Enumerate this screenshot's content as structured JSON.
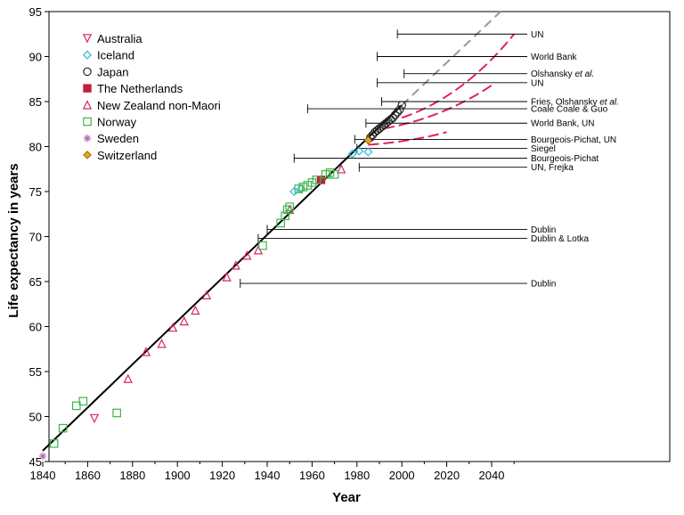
{
  "chart_data": {
    "type": "scatter",
    "xlabel": "Year",
    "ylabel": "Life expectancy in years",
    "xlim": [
      1840,
      2070
    ],
    "ylim": [
      45,
      95
    ],
    "x_ticks": [
      1840,
      1860,
      1880,
      1900,
      1920,
      1940,
      1960,
      1980,
      2000,
      2020,
      2040
    ],
    "y_ticks": [
      45,
      50,
      55,
      60,
      65,
      70,
      75,
      80,
      85,
      90,
      95
    ],
    "legend_position": "top-left",
    "series": [
      {
        "name": "Australia",
        "marker": "triangle-down",
        "color": "#d6246e",
        "points": [
          [
            1863,
            49.8
          ]
        ]
      },
      {
        "name": "Iceland",
        "marker": "diamond",
        "color": "#29b6d8",
        "points": [
          [
            1952,
            75.0
          ],
          [
            1955,
            75.3
          ],
          [
            1978,
            79.2
          ],
          [
            1981,
            79.5
          ],
          [
            1985,
            79.4
          ]
        ]
      },
      {
        "name": "Japan",
        "marker": "circle",
        "color": "#222222",
        "points": [
          [
            1986,
            81.0
          ],
          [
            1987,
            81.3
          ],
          [
            1988,
            81.6
          ],
          [
            1989,
            81.8
          ],
          [
            1990,
            82.0
          ],
          [
            1991,
            82.2
          ],
          [
            1992,
            82.4
          ],
          [
            1993,
            82.6
          ],
          [
            1994,
            82.8
          ],
          [
            1995,
            83.0
          ],
          [
            1996,
            83.2
          ],
          [
            1997,
            83.5
          ],
          [
            1998,
            83.8
          ],
          [
            1999,
            84.1
          ],
          [
            2000,
            84.6
          ]
        ]
      },
      {
        "name": "The Netherlands",
        "marker": "square-filled",
        "color": "#c0213a",
        "points": [
          [
            1964,
            76.3
          ]
        ]
      },
      {
        "name": "New Zealand non-Maori",
        "marker": "triangle-up",
        "color": "#d6246e",
        "points": [
          [
            1878,
            54.2
          ],
          [
            1886,
            57.2
          ],
          [
            1893,
            58.1
          ],
          [
            1898,
            59.9
          ],
          [
            1903,
            60.6
          ],
          [
            1908,
            61.8
          ],
          [
            1913,
            63.5
          ],
          [
            1922,
            65.5
          ],
          [
            1926,
            66.8
          ],
          [
            1931,
            67.9
          ],
          [
            1936,
            68.5
          ],
          [
            1950,
            73.0
          ],
          [
            1973,
            77.5
          ]
        ]
      },
      {
        "name": "Norway",
        "marker": "square",
        "color": "#3cb54a",
        "points": [
          [
            1845,
            47.0
          ],
          [
            1849,
            48.7
          ],
          [
            1855,
            51.2
          ],
          [
            1858,
            51.7
          ],
          [
            1873,
            50.4
          ],
          [
            1938,
            69.0
          ],
          [
            1946,
            71.5
          ],
          [
            1948,
            72.3
          ],
          [
            1949,
            73.0
          ],
          [
            1950,
            73.3
          ],
          [
            1954,
            75.3
          ],
          [
            1956,
            75.5
          ],
          [
            1958,
            75.7
          ],
          [
            1960,
            76.0
          ],
          [
            1962,
            76.3
          ],
          [
            1966,
            76.9
          ],
          [
            1968,
            77.1
          ],
          [
            1970,
            76.9
          ]
        ]
      },
      {
        "name": "Sweden",
        "marker": "asterisk",
        "color": "#b565b5",
        "points": [
          [
            1840,
            45.6
          ]
        ]
      },
      {
        "name": "Switzerland",
        "marker": "diamond-filled",
        "color": "#e8a317",
        "points": [
          [
            1985,
            80.7
          ]
        ]
      }
    ],
    "trend_line": {
      "from": [
        1840,
        46.2
      ],
      "to": [
        2000,
        84.6
      ]
    },
    "trend_extension": {
      "from": [
        2000,
        84.6
      ],
      "to": [
        2044,
        95
      ]
    },
    "projections": [
      {
        "from": [
          2000,
          83.2
        ],
        "to": [
          2050,
          92.5
        ]
      },
      {
        "from": [
          1992,
          82.0
        ],
        "to": [
          2040,
          86.8
        ]
      },
      {
        "from": [
          1985,
          80.2
        ],
        "to": [
          2020,
          81.6
        ]
      }
    ],
    "annotations": [
      {
        "label": "UN",
        "label_prefix": "",
        "label_italic": "",
        "label_suffix": "",
        "x_start": 1998,
        "y": 92.5
      },
      {
        "label": "World Bank",
        "label_prefix": "",
        "label_italic": "",
        "label_suffix": "",
        "x_start": 1989,
        "y": 90.0
      },
      {
        "label": "",
        "label_prefix": "Olshansky ",
        "label_italic": "et al.",
        "label_suffix": "",
        "x_start": 2001,
        "y": 88.1
      },
      {
        "label": "UN",
        "label_prefix": "",
        "label_italic": "",
        "label_suffix": "",
        "x_start": 1989,
        "y": 87.1
      },
      {
        "label": "",
        "label_prefix": "Fries, Olshansky ",
        "label_italic": "et al.",
        "label_suffix": "",
        "x_start": 1991,
        "y": 85.0
      },
      {
        "label": "Coale   Coale & Guo",
        "label_prefix": "",
        "label_italic": "",
        "label_suffix": "",
        "x_start": 1958,
        "y": 84.2
      },
      {
        "label": "World Bank, UN",
        "label_prefix": "",
        "label_italic": "",
        "label_suffix": "",
        "x_start": 1984,
        "y": 82.6
      },
      {
        "label": "Bourgeois-Pichat, UN",
        "label_prefix": "",
        "label_italic": "",
        "label_suffix": "",
        "x_start": 1979,
        "y": 80.8
      },
      {
        "label": "Siegel",
        "label_prefix": "",
        "label_italic": "",
        "label_suffix": "",
        "x_start": 1980,
        "y": 79.8
      },
      {
        "label": "Bourgeois-Pichat",
        "label_prefix": "",
        "label_italic": "",
        "label_suffix": "",
        "x_start": 1952,
        "y": 78.7
      },
      {
        "label": "UN, Frejka",
        "label_prefix": "",
        "label_italic": "",
        "label_suffix": "",
        "x_start": 1981,
        "y": 77.7
      },
      {
        "label": "Dublin",
        "label_prefix": "",
        "label_italic": "",
        "label_suffix": "",
        "x_start": 1940,
        "y": 70.8
      },
      {
        "label": "Dublin & Lotka",
        "label_prefix": "",
        "label_italic": "",
        "label_suffix": "",
        "x_start": 1936,
        "y": 69.8
      },
      {
        "label": "Dublin",
        "label_prefix": "",
        "label_italic": "",
        "label_suffix": "",
        "x_start": 1928,
        "y": 64.8
      }
    ]
  }
}
